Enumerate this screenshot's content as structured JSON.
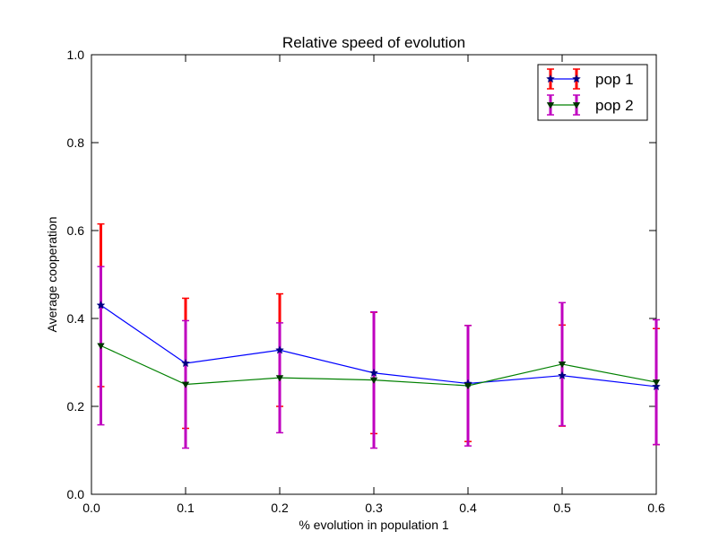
{
  "chart_data": {
    "type": "line",
    "title": "Relative speed of evolution",
    "xlabel": "% evolution in population 1",
    "ylabel": "Average cooperation",
    "xlim": [
      0.0,
      0.6
    ],
    "ylim": [
      0.0,
      1.0
    ],
    "xticks": [
      "0.0",
      "0.1",
      "0.2",
      "0.3",
      "0.4",
      "0.5",
      "0.6"
    ],
    "yticks": [
      "0.0",
      "0.2",
      "0.4",
      "0.6",
      "0.8",
      "1.0"
    ],
    "grid": false,
    "legend_position": "top-right",
    "x": [
      0.01,
      0.1,
      0.2,
      0.3,
      0.4,
      0.5,
      0.6
    ],
    "series": [
      {
        "name": "pop 1",
        "line_color": "#0000ff",
        "marker_color": "#000080",
        "errorbar_color": "#ff0000",
        "marker": "star",
        "values": [
          0.43,
          0.298,
          0.328,
          0.276,
          0.252,
          0.27,
          0.245
        ],
        "errors": [
          0.185,
          0.148,
          0.128,
          0.138,
          0.132,
          0.115,
          0.132
        ]
      },
      {
        "name": "pop 2",
        "line_color": "#008000",
        "marker_color": "#003300",
        "errorbar_color": "#bf00bf",
        "marker": "triangle-down",
        "values": [
          0.338,
          0.25,
          0.265,
          0.26,
          0.247,
          0.296,
          0.255
        ],
        "errors": [
          0.18,
          0.145,
          0.125,
          0.155,
          0.137,
          0.14,
          0.142
        ]
      }
    ]
  }
}
